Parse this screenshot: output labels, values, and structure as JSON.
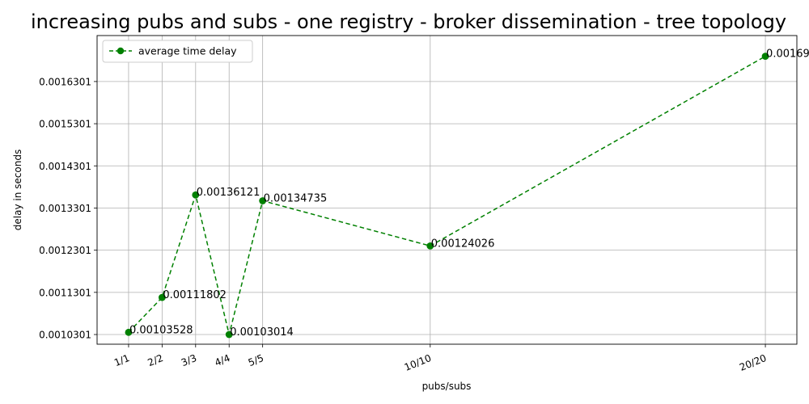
{
  "chart_data": {
    "type": "line",
    "title": "increasing pubs and subs - one registry - broker dissemination - tree topology",
    "xlabel": "pubs/subs",
    "ylabel": "delay in seconds",
    "x": [
      1,
      2,
      3,
      4,
      5,
      10,
      20
    ],
    "categories": [
      "1/1",
      "2/2",
      "3/3",
      "4/4",
      "5/5",
      "10/10",
      "20/20"
    ],
    "series": [
      {
        "name": "average time delay",
        "values": [
          0.00103528,
          0.00111802,
          0.00136121,
          0.00103014,
          0.00134735,
          0.00124026,
          0.00169
        ],
        "labels": [
          "0.00103528",
          "0.00111802",
          "0.00136121",
          "0.00103014",
          "0.00134735",
          "0.00124026",
          "0.00169"
        ],
        "color": "#008000",
        "line_style": "dashed",
        "marker": "circle"
      }
    ],
    "yticks": [
      0.0010301,
      0.0011301,
      0.0012301,
      0.0013301,
      0.0014301,
      0.0015301,
      0.0016301
    ],
    "ytick_labels": [
      "0.0010301",
      "0.0011301",
      "0.0012301",
      "0.0013301",
      "0.0014301",
      "0.0015301",
      "0.0016301"
    ],
    "xlim": [
      0.06,
      20.94
    ],
    "ylim": [
      0.00100715,
      0.00173915
    ],
    "grid": true,
    "legend_position": "top-left"
  }
}
